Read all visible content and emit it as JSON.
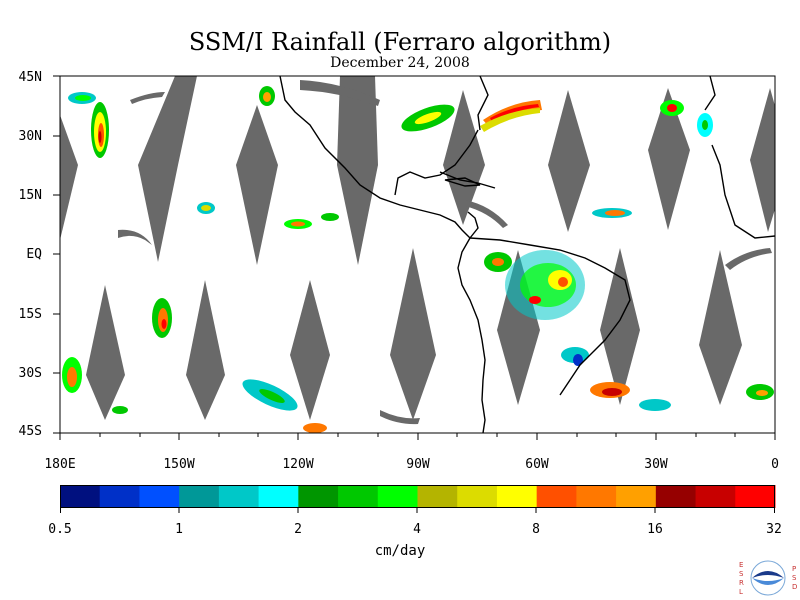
{
  "title": "SSM/I Rainfall (Ferraro algorithm)",
  "subtitle": "December 24, 2008",
  "map": {
    "lat_labels": [
      "45N",
      "30N",
      "15N",
      "EQ",
      "15S",
      "30S",
      "45S"
    ],
    "lon_labels": [
      "180E",
      "150W",
      "120W",
      "90W",
      "60W",
      "30W",
      "0"
    ],
    "swath_gap_color": "#696969",
    "land_outline_color": "#000000"
  },
  "colorbar": {
    "colors": [
      "#00107f",
      "#0030c8",
      "#0050ff",
      "#009898",
      "#00c8c8",
      "#00ffff",
      "#009600",
      "#00c800",
      "#00ff00",
      "#b4b400",
      "#dcdc00",
      "#ffff00",
      "#ff5000",
      "#ff7800",
      "#ffa000",
      "#960000",
      "#c80000",
      "#ff0000"
    ],
    "tick_labels": [
      "0.5",
      "1",
      "2",
      "4",
      "8",
      "16",
      "32"
    ],
    "units": "cm/day"
  },
  "logo": {
    "left_letters": "ESRL",
    "right_letters": "PSD",
    "name": "NOAA",
    "icon": "noaa-logo"
  }
}
